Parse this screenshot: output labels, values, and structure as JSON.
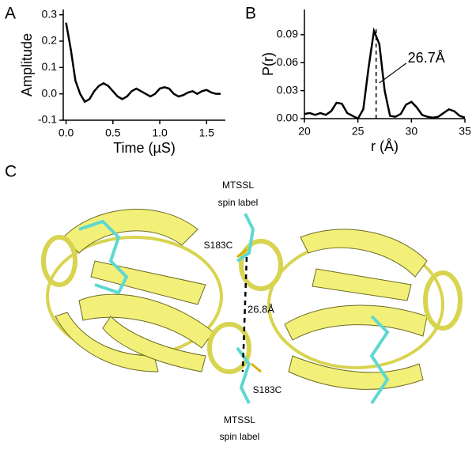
{
  "chart_data": [
    {
      "type": "line",
      "panel_label": "A",
      "xlabel": "Time (µS)",
      "ylabel": "Amplitude",
      "color": "#000000",
      "x": [
        0,
        0.05,
        0.1,
        0.15,
        0.2,
        0.25,
        0.3,
        0.35,
        0.4,
        0.45,
        0.5,
        0.55,
        0.6,
        0.65,
        0.7,
        0.75,
        0.8,
        0.85,
        0.9,
        0.95,
        1.0,
        1.05,
        1.1,
        1.15,
        1.2,
        1.25,
        1.3,
        1.35,
        1.4,
        1.45,
        1.5,
        1.55,
        1.6,
        1.65
      ],
      "values": [
        0.27,
        0.17,
        0.05,
        0.0,
        -0.03,
        -0.02,
        0.01,
        0.03,
        0.04,
        0.03,
        0.01,
        -0.01,
        -0.02,
        -0.01,
        0.01,
        0.02,
        0.01,
        0.0,
        -0.01,
        0.0,
        0.02,
        0.025,
        0.02,
        0.0,
        -0.01,
        -0.005,
        0.005,
        0.01,
        0.0,
        0.01,
        0.015,
        0.005,
        0.0,
        0.0
      ],
      "xlim": [
        -0.03,
        1.7
      ],
      "xticks": [
        {
          "value": 0,
          "label": "0.0"
        },
        0.5,
        {
          "value": 1,
          "label": "1.0"
        },
        1.5
      ],
      "ylim": [
        -0.1,
        0.32
      ],
      "yticks": [
        -0.1,
        {
          "value": 0,
          "label": "0.0"
        },
        0.1,
        0.2,
        0.3
      ]
    },
    {
      "type": "line",
      "panel_label": "B",
      "xlabel": "r (Å)",
      "ylabel": "P(r)",
      "color": "#000000",
      "x": [
        20,
        20.5,
        21,
        21.5,
        22,
        22.5,
        23,
        23.5,
        24,
        24.5,
        25,
        25.5,
        26,
        26.5,
        27,
        27.5,
        28,
        28.5,
        29,
        29.5,
        30,
        30.5,
        31,
        31.5,
        32,
        32.5,
        33,
        33.5,
        34,
        34.5,
        35
      ],
      "values": [
        0.005,
        0.006,
        0.004,
        0.006,
        0.004,
        0.008,
        0.017,
        0.016,
        0.006,
        0.003,
        0.0,
        0.01,
        0.055,
        0.094,
        0.08,
        0.03,
        0.003,
        0.002,
        0.005,
        0.015,
        0.018,
        0.012,
        0.004,
        0.002,
        0.001,
        0.002,
        0.006,
        0.01,
        0.008,
        0.003,
        0.001
      ],
      "xlim": [
        20,
        35
      ],
      "xticks": [
        20,
        25,
        30,
        35
      ],
      "ylim": [
        0,
        0.117
      ],
      "yticks": [
        {
          "value": 0,
          "label": "0.00"
        },
        0.03,
        0.06,
        0.09
      ],
      "annotation": {
        "text": "26.7Å",
        "x": 26.7
      }
    }
  ],
  "panel_c": {
    "panel_label": "C",
    "top_label": [
      "MTSSL",
      "spin label"
    ],
    "top_site": "S183C",
    "distance": "26.8Å",
    "bottom_site": "S183C",
    "bottom_label": [
      "MTSSL",
      "spin label"
    ]
  }
}
